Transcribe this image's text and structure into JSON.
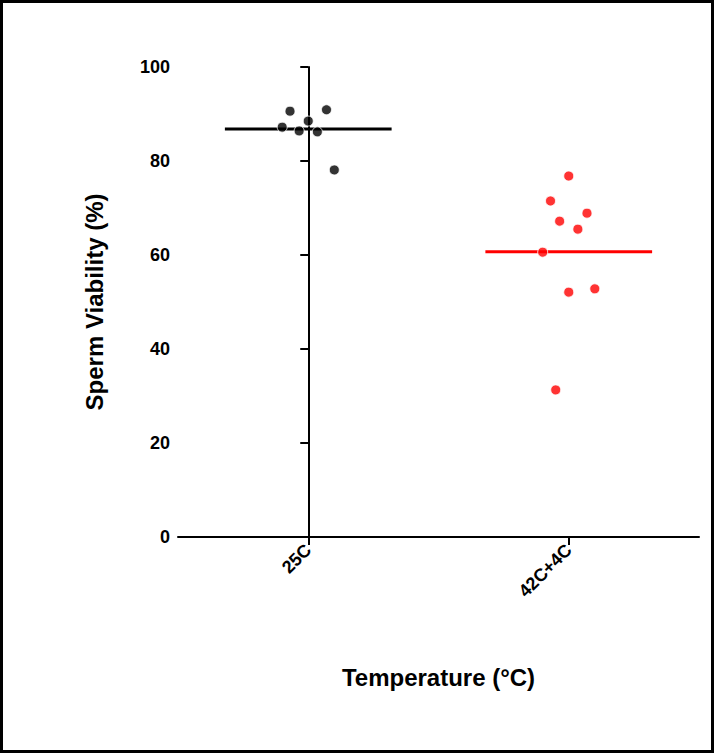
{
  "chart_data": {
    "type": "scatter",
    "x_label": "Temperature (°C)",
    "y_label": "Sperm Viability (%)",
    "categories": [
      "25C",
      "42C+4C"
    ],
    "values": [
      [
        88.5,
        90.6,
        90.9,
        86.4,
        86.2,
        87.2,
        78.1
      ],
      [
        76.8,
        71.5,
        68.9,
        67.2,
        65.5,
        60.6,
        52.8,
        52.1,
        31.3
      ]
    ],
    "means": [
      86.8,
      60.7
    ],
    "colors": [
      "#000000",
      "#ff0000"
    ],
    "ylim": [
      0,
      100
    ],
    "yticks": [
      0,
      20,
      40,
      60,
      80,
      100
    ],
    "grid": false
  }
}
